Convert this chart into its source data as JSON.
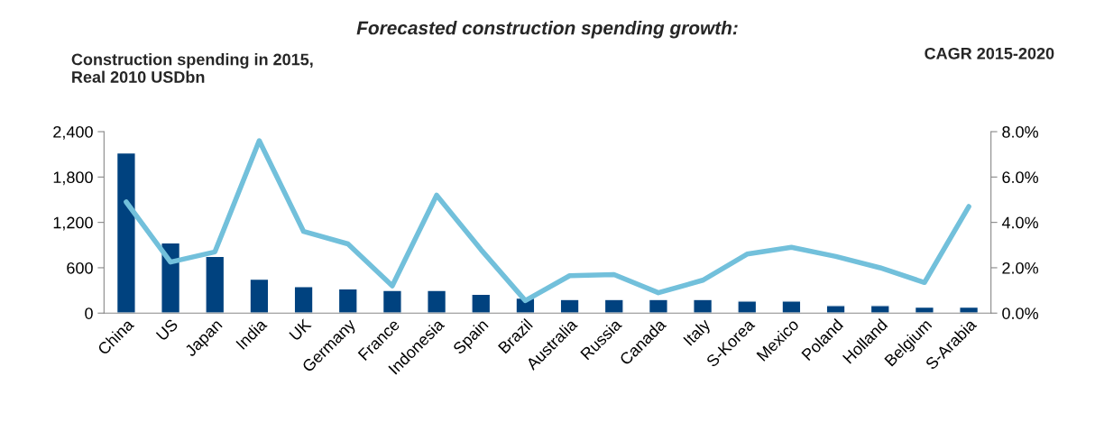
{
  "chart_data": {
    "type": "bar",
    "title": "Forecasted construction spending growth:",
    "ylabel": "Construction spending in 2015,\nReal 2010 USDbn",
    "y2label": "CAGR 2015-2020",
    "categories": [
      "China",
      "US",
      "Japan",
      "India",
      "UK",
      "Germany",
      "France",
      "Indonesia",
      "Spain",
      "Brazil",
      "Australia",
      "Russia",
      "Canada",
      "Italy",
      "S-Korea",
      "Mexico",
      "Poland",
      "Holland",
      "Belgium",
      "S-Arabia"
    ],
    "series": [
      {
        "color": "#00427f",
        "values": [
          2120,
          930,
          750,
          450,
          350,
          320,
          300,
          300,
          250,
          200,
          180,
          180,
          180,
          180,
          160,
          160,
          100,
          100,
          80,
          80
        ]
      },
      {
        "type": "line",
        "axis": "y2",
        "color": "#72c0db",
        "values": [
          4.9,
          2.25,
          2.7,
          7.6,
          3.6,
          3.05,
          1.2,
          5.2,
          2.8,
          0.55,
          1.65,
          1.7,
          0.9,
          1.45,
          2.6,
          2.9,
          2.5,
          2.0,
          1.35,
          4.7
        ]
      }
    ],
    "ylim": [
      0,
      2400
    ],
    "yticks": [
      {
        "value": 0,
        "label": "0"
      },
      {
        "value": 600,
        "label": "600"
      },
      {
        "value": 1200,
        "label": "1,200"
      },
      {
        "value": 1800,
        "label": "1,800"
      },
      {
        "value": 2400,
        "label": "2,400"
      }
    ],
    "y2lim": [
      0,
      8
    ],
    "y2ticks": [
      {
        "value": 0,
        "label": "0.0%"
      },
      {
        "value": 2,
        "label": "2.0%"
      },
      {
        "value": 4,
        "label": "4.0%"
      },
      {
        "value": 6,
        "label": "6.0%"
      },
      {
        "value": 8,
        "label": "8.0%"
      }
    ]
  }
}
